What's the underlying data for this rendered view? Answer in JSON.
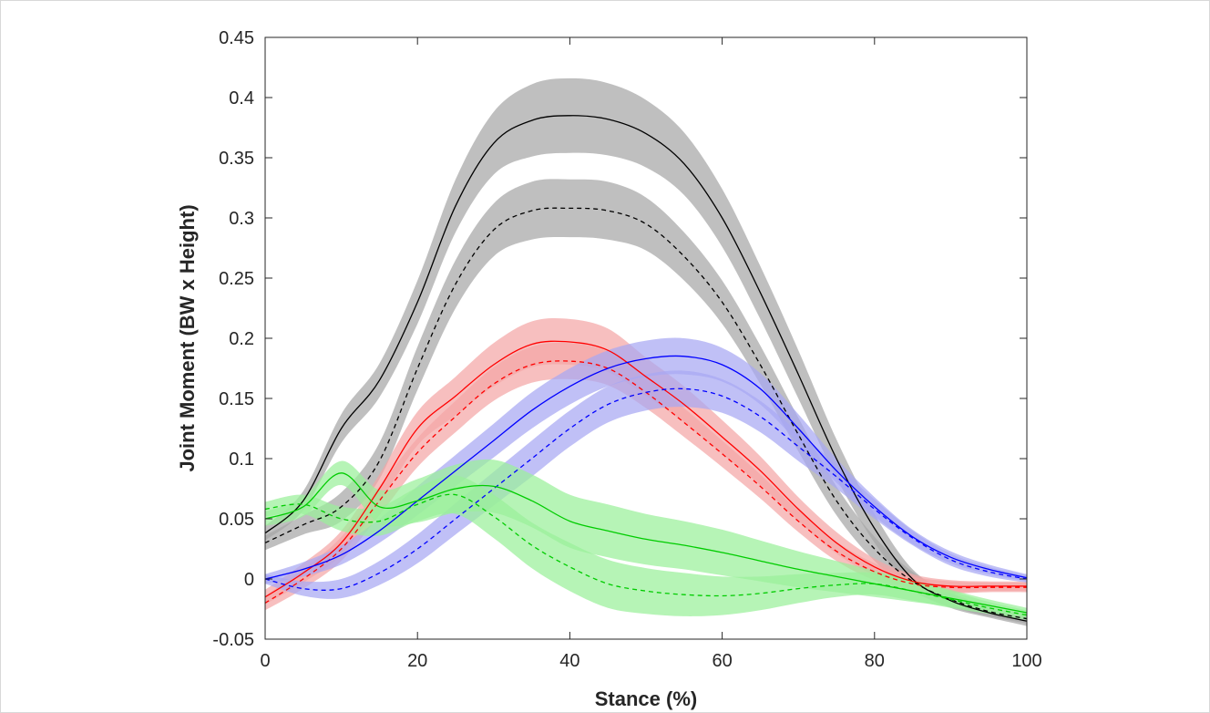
{
  "chart_data": {
    "type": "line",
    "title": "",
    "xlabel": "Stance (%)",
    "ylabel": "Joint Moment (BW x Height)",
    "xlim": [
      0,
      100
    ],
    "ylim": [
      -0.05,
      0.45
    ],
    "xticks": [
      0,
      20,
      40,
      60,
      80,
      100
    ],
    "xtick_labels": [
      "0",
      "20",
      "40",
      "60",
      "80",
      "100"
    ],
    "yticks": [
      -0.05,
      0,
      0.05,
      0.1,
      0.15,
      0.2,
      0.25,
      0.3,
      0.35,
      0.4,
      0.45
    ],
    "ytick_labels": [
      "-0.05",
      "0",
      "0.05",
      "0.1",
      "0.15",
      "0.2",
      "0.25",
      "0.3",
      "0.35",
      "0.4",
      "0.45"
    ],
    "grid": false,
    "legend": "none",
    "x": [
      0,
      5,
      10,
      15,
      20,
      25,
      30,
      35,
      40,
      45,
      50,
      55,
      60,
      65,
      70,
      75,
      80,
      85,
      90,
      95,
      100
    ],
    "series": [
      {
        "color": "#000000",
        "line": "solid",
        "band": "#a6a6a6",
        "sd": [
          0.006,
          0.008,
          0.012,
          0.014,
          0.018,
          0.022,
          0.026,
          0.03,
          0.031,
          0.03,
          0.028,
          0.026,
          0.024,
          0.022,
          0.02,
          0.016,
          0.012,
          0.008,
          0.006,
          0.004,
          0.004
        ],
        "values": [
          0.038,
          0.065,
          0.125,
          0.165,
          0.23,
          0.31,
          0.362,
          0.381,
          0.385,
          0.382,
          0.37,
          0.345,
          0.3,
          0.238,
          0.17,
          0.1,
          0.042,
          0.0,
          -0.018,
          -0.028,
          -0.035
        ]
      },
      {
        "color": "#000000",
        "line": "dashed",
        "band": "#a6a6a6",
        "sd": [
          0.006,
          0.008,
          0.012,
          0.015,
          0.018,
          0.02,
          0.022,
          0.024,
          0.024,
          0.024,
          0.022,
          0.02,
          0.018,
          0.016,
          0.014,
          0.012,
          0.01,
          0.008,
          0.006,
          0.004,
          0.004
        ],
        "values": [
          0.03,
          0.045,
          0.06,
          0.098,
          0.175,
          0.245,
          0.29,
          0.306,
          0.308,
          0.306,
          0.295,
          0.268,
          0.23,
          0.178,
          0.12,
          0.065,
          0.025,
          -0.002,
          -0.017,
          -0.027,
          -0.033
        ]
      },
      {
        "color": "#ff0000",
        "line": "solid",
        "band": "#f4a6a6",
        "sd": [
          0.006,
          0.008,
          0.01,
          0.012,
          0.014,
          0.016,
          0.018,
          0.019,
          0.019,
          0.018,
          0.016,
          0.015,
          0.014,
          0.012,
          0.01,
          0.009,
          0.007,
          0.006,
          0.005,
          0.004,
          0.004
        ],
        "values": [
          -0.015,
          0.005,
          0.03,
          0.075,
          0.125,
          0.152,
          0.178,
          0.195,
          0.197,
          0.19,
          0.168,
          0.145,
          0.118,
          0.09,
          0.058,
          0.03,
          0.01,
          -0.002,
          -0.006,
          -0.006,
          -0.006
        ]
      },
      {
        "color": "#ff0000",
        "line": "dashed",
        "band": "#f4a6a6",
        "sd": [
          0.006,
          0.008,
          0.01,
          0.012,
          0.012,
          0.013,
          0.014,
          0.015,
          0.015,
          0.014,
          0.013,
          0.012,
          0.011,
          0.01,
          0.009,
          0.008,
          0.007,
          0.006,
          0.005,
          0.004,
          0.004
        ],
        "values": [
          -0.02,
          0.0,
          0.025,
          0.065,
          0.105,
          0.135,
          0.162,
          0.178,
          0.181,
          0.175,
          0.155,
          0.13,
          0.104,
          0.077,
          0.048,
          0.023,
          0.006,
          -0.004,
          -0.007,
          -0.007,
          -0.007
        ]
      },
      {
        "color": "#0000ff",
        "line": "solid",
        "band": "#a8a8f2",
        "sd": [
          0.004,
          0.006,
          0.008,
          0.01,
          0.012,
          0.013,
          0.014,
          0.015,
          0.015,
          0.015,
          0.015,
          0.015,
          0.014,
          0.013,
          0.012,
          0.01,
          0.008,
          0.006,
          0.005,
          0.004,
          0.003
        ],
        "values": [
          0.0,
          0.008,
          0.02,
          0.04,
          0.065,
          0.09,
          0.115,
          0.14,
          0.16,
          0.175,
          0.183,
          0.185,
          0.178,
          0.158,
          0.125,
          0.09,
          0.06,
          0.035,
          0.018,
          0.008,
          0.001
        ]
      },
      {
        "color": "#0000ff",
        "line": "dashed",
        "band": "#a8a8f2",
        "sd": [
          0.004,
          0.006,
          0.008,
          0.01,
          0.012,
          0.013,
          0.014,
          0.015,
          0.015,
          0.015,
          0.015,
          0.015,
          0.014,
          0.013,
          0.012,
          0.01,
          0.008,
          0.006,
          0.005,
          0.004,
          0.003
        ],
        "values": [
          0.0,
          -0.008,
          -0.008,
          0.005,
          0.025,
          0.05,
          0.075,
          0.1,
          0.125,
          0.145,
          0.155,
          0.158,
          0.152,
          0.135,
          0.11,
          0.085,
          0.058,
          0.034,
          0.016,
          0.006,
          0.0
        ]
      },
      {
        "color": "#00cc00",
        "line": "solid",
        "band": "#9af09a",
        "sd": [
          0.006,
          0.008,
          0.01,
          0.014,
          0.018,
          0.02,
          0.022,
          0.022,
          0.022,
          0.022,
          0.021,
          0.02,
          0.019,
          0.017,
          0.015,
          0.013,
          0.011,
          0.009,
          0.007,
          0.005,
          0.004
        ],
        "values": [
          0.05,
          0.06,
          0.088,
          0.06,
          0.065,
          0.075,
          0.077,
          0.065,
          0.048,
          0.04,
          0.033,
          0.028,
          0.022,
          0.015,
          0.008,
          0.002,
          -0.004,
          -0.01,
          -0.016,
          -0.022,
          -0.028
        ]
      },
      {
        "color": "#00cc00",
        "line": "dashed",
        "band": "#9af09a",
        "sd": [
          0.006,
          0.008,
          0.01,
          0.012,
          0.014,
          0.016,
          0.018,
          0.019,
          0.02,
          0.02,
          0.019,
          0.018,
          0.016,
          0.014,
          0.012,
          0.01,
          0.009,
          0.008,
          0.007,
          0.005,
          0.004
        ],
        "values": [
          0.058,
          0.062,
          0.05,
          0.048,
          0.062,
          0.07,
          0.052,
          0.028,
          0.01,
          -0.004,
          -0.01,
          -0.013,
          -0.014,
          -0.012,
          -0.008,
          -0.005,
          -0.004,
          -0.01,
          -0.017,
          -0.024,
          -0.03
        ]
      }
    ]
  }
}
